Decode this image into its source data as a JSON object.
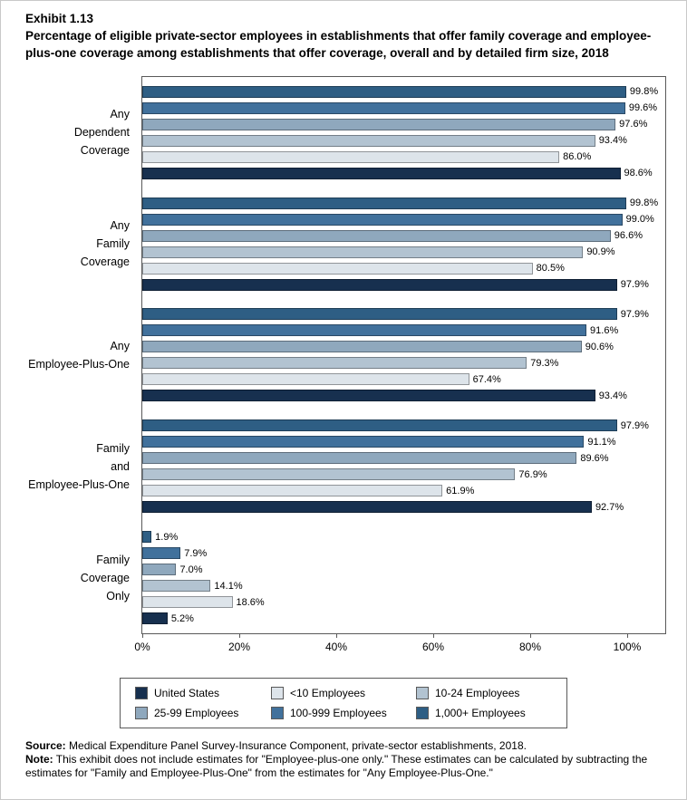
{
  "header": {
    "exhibit": "Exhibit 1.13",
    "title": "Percentage of eligible private-sector employees in establishments that offer family coverage and employee-plus-one coverage among establishments that offer coverage, overall and by detailed firm size, 2018"
  },
  "chart_data": {
    "type": "bar",
    "orientation": "horizontal",
    "xlim": [
      0,
      100
    ],
    "x_ticks": [
      "0%",
      "20%",
      "40%",
      "60%",
      "80%",
      "100%"
    ],
    "grid": false,
    "legend_position": "bottom",
    "categories": [
      [
        "Any",
        "Dependent",
        "Coverage"
      ],
      [
        "Any",
        "Family",
        "Coverage"
      ],
      [
        "Any",
        "Employee-Plus-One"
      ],
      [
        "Family",
        "and",
        "Employee-Plus-One"
      ],
      [
        "Family",
        "Coverage",
        "Only"
      ]
    ],
    "series": [
      {
        "name": "1,000+ Employees",
        "color": "#2e5e84",
        "values": [
          99.8,
          99.8,
          97.9,
          97.9,
          1.9
        ]
      },
      {
        "name": "100-999 Employees",
        "color": "#41719c",
        "values": [
          99.6,
          99.0,
          91.6,
          91.1,
          7.9
        ]
      },
      {
        "name": "25-99 Employees",
        "color": "#8fa8bd",
        "values": [
          97.6,
          96.6,
          90.6,
          89.6,
          7.0
        ]
      },
      {
        "name": "10-24 Employees",
        "color": "#b2c3d1",
        "values": [
          93.4,
          90.9,
          79.3,
          76.9,
          14.1
        ]
      },
      {
        "name": "<10 Employees",
        "color": "#dde4ea",
        "values": [
          86.0,
          80.5,
          67.4,
          61.9,
          18.6
        ]
      },
      {
        "name": "United States",
        "color": "#17304f",
        "values": [
          98.6,
          97.9,
          93.4,
          92.7,
          5.2
        ]
      }
    ],
    "legend_order": [
      "United States",
      "<10 Employees",
      "10-24 Employees",
      "25-99 Employees",
      "100-999 Employees",
      "1,000+ Employees"
    ]
  },
  "footer": {
    "source_label": "Source:",
    "source_text": " Medical Expenditure Panel Survey-Insurance Component, private-sector establishments, 2018.",
    "note_label": "Note:",
    "note_text": " This exhibit does not include estimates for \"Employee-plus-one only.\" These estimates can be calculated by subtracting the estimates for \"Family and Employee-Plus-One\" from the estimates for \"Any Employee-Plus-One.\""
  }
}
